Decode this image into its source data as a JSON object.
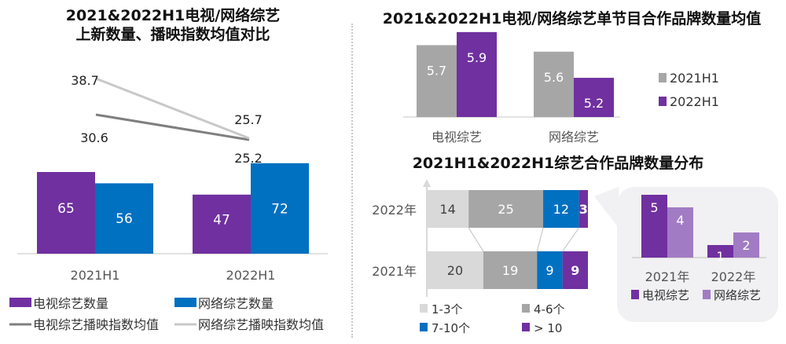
{
  "colors": {
    "purple": "#7030a0",
    "blue": "#0070c0",
    "gray_bar": "#a6a6a6",
    "light_gray": "#d9d9d9",
    "light_purple": "#a17cc4",
    "tv_line": "#7f7f7f",
    "web_line": "#c8c8c8"
  },
  "chart_data": [
    {
      "id": "left",
      "type": "bar+line",
      "title_line1": "2021&2022H1电视/网络综艺",
      "title_line2": "上新数量、播映指数均值对比",
      "categories": [
        "2021H1",
        "2022H1"
      ],
      "bar_series": [
        {
          "name": "电视综艺数量",
          "values": [
            65,
            47
          ]
        },
        {
          "name": "网络综艺数量",
          "values": [
            56,
            72
          ]
        }
      ],
      "line_series": [
        {
          "name": "电视综艺播映指数均值",
          "values": [
            30.6,
            25.2
          ]
        },
        {
          "name": "网络综艺播映指数均值",
          "values": [
            38.7,
            25.7
          ]
        }
      ],
      "legend": [
        "电视综艺数量",
        "网络综艺数量",
        "电视综艺播映指数均值",
        "网络综艺播映指数均值"
      ],
      "legend_position": "bottom"
    },
    {
      "id": "top-right",
      "type": "bar",
      "title": "2021&2022H1电视/网络综艺单节目合作品牌数量均值",
      "categories": [
        "电视综艺",
        "网络综艺"
      ],
      "series": [
        {
          "name": "2021H1",
          "values": [
            5.7,
            5.6
          ]
        },
        {
          "name": "2022H1",
          "values": [
            5.9,
            5.2
          ]
        }
      ],
      "legend_position": "right"
    },
    {
      "id": "bottom-right",
      "type": "stacked-bar",
      "title": "2021H1&2022H1综艺合作品牌数量分布",
      "categories": [
        "2022年",
        "2021年"
      ],
      "series": [
        {
          "name": "1-3个",
          "values": [
            14,
            20
          ]
        },
        {
          "name": "4-6个",
          "values": [
            25,
            19
          ]
        },
        {
          "name": "7-10个",
          "values": [
            12,
            9
          ]
        },
        {
          "name": "> 10",
          "values": [
            3,
            9
          ]
        }
      ],
      "legend_position": "bottom"
    },
    {
      "id": "inset",
      "type": "bar",
      "title": "",
      "categories": [
        "2021年",
        "2022年"
      ],
      "series": [
        {
          "name": "电视综艺",
          "values": [
            5,
            1
          ]
        },
        {
          "name": "网络综艺",
          "values": [
            4,
            2
          ]
        }
      ],
      "legend_position": "bottom"
    }
  ]
}
